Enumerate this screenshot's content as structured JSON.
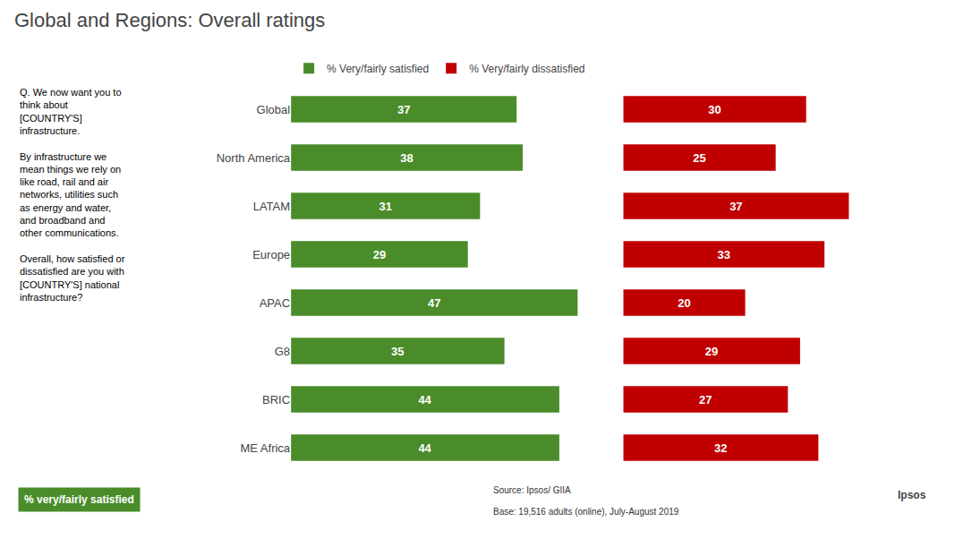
{
  "chart_data": {
    "type": "bar",
    "orientation": "horizontal",
    "title": "Global and Regions: Overall ratings",
    "categories": [
      "Global",
      "North America",
      "LATAM",
      "Europe",
      "APAC",
      "G8",
      "BRIC",
      "ME Africa"
    ],
    "series": [
      {
        "name": "% Very/fairly satisfied",
        "color": "#4a8c2a",
        "values": [
          37,
          38,
          31,
          29,
          47,
          35,
          44,
          44
        ]
      },
      {
        "name": "% Very/fairly dissatisfied",
        "color": "#c00000",
        "values": [
          30,
          25,
          37,
          33,
          20,
          29,
          27,
          32
        ]
      }
    ],
    "xlim": [
      0,
      50
    ],
    "data_labels": true,
    "tick_labels": "y",
    "grid": false,
    "legend": "top",
    "annotations": [
      "Q. We now want you to\nthink about\n[COUNTRY'S]\ninfrastructure.\n\nBy infrastructure we\nmean things we rely on\nlike road, rail and air\nnetworks, utilities such\nas energy and water,\nand broadband and\nother communications.\n\nOverall, how satisfied or\ndissatisfied are you with\n[COUNTRY'S] national\ninfrastructure?",
      "% very/fairly satisfied",
      "Source: Ipsos/ GIIA",
      "Base: 19,516 adults (online), July-August 2019",
      "Ipsos"
    ]
  }
}
